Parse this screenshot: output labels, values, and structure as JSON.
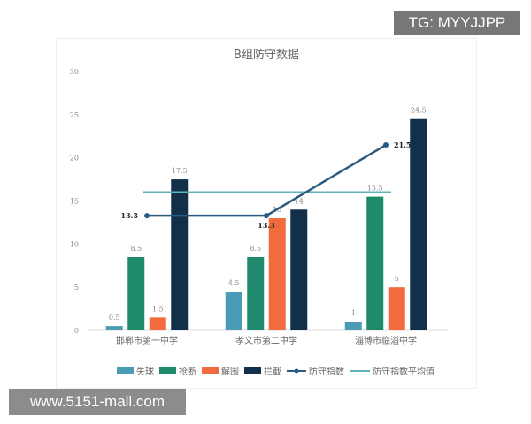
{
  "chart_data": {
    "type": "bar",
    "title": "B组防守数据",
    "categories": [
      "邯郸市第一中学",
      "孝义市第二中学",
      "淄博市临淄中学"
    ],
    "ylim": [
      0,
      30
    ],
    "yticks": [
      0,
      5,
      10,
      15,
      20,
      25,
      30
    ],
    "grid": false,
    "legend_position": "bottom",
    "series": [
      {
        "name": "失球",
        "kind": "bar",
        "color": "#4a9bb5",
        "values": [
          0.5,
          4.5,
          1
        ]
      },
      {
        "name": "抢断",
        "kind": "bar",
        "color": "#1f8a6b",
        "values": [
          8.5,
          8.5,
          15.5
        ]
      },
      {
        "name": "解围",
        "kind": "bar",
        "color": "#f26b3f",
        "values": [
          1.5,
          13,
          5
        ]
      },
      {
        "name": "拦截",
        "kind": "bar",
        "color": "#13304a",
        "values": [
          17.5,
          14,
          24.5
        ]
      },
      {
        "name": "防守指数",
        "kind": "line",
        "color": "#2b5a80",
        "values": [
          13.3,
          13.3,
          21.5
        ]
      },
      {
        "name": "防守指数平均值",
        "kind": "line",
        "color": "#5fb3b8",
        "values": [
          16,
          16,
          16
        ]
      }
    ]
  },
  "watermarks": {
    "tg": "TG: MYYJJPP",
    "url": "www.5151-mall.com"
  }
}
